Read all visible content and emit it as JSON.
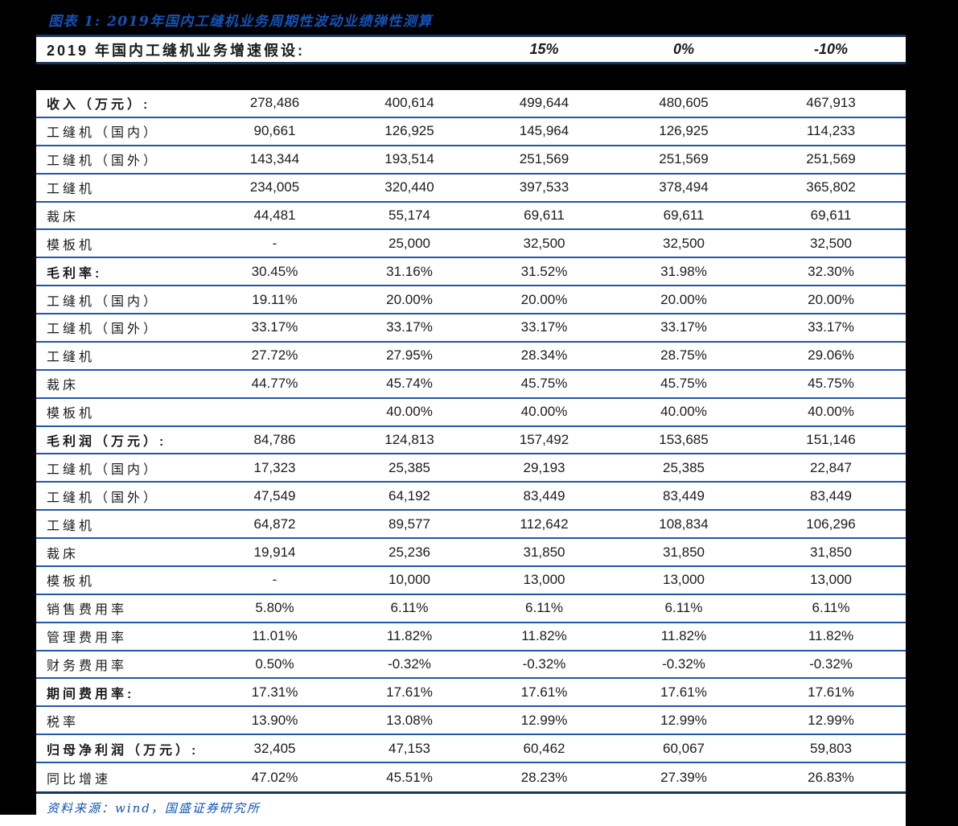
{
  "figure": {
    "caption": "图表 1: 2019年国内工缝机业务周期性波动业绩弹性测算",
    "source": "资料来源：wind，国盛证券研究所"
  },
  "header": {
    "label": "2019 年国内工缝机业务增速假设:",
    "scenarios": [
      "15%",
      "0%",
      "-10%"
    ]
  },
  "table": {
    "rows": [
      {
        "label": "收入（万元）:",
        "bold": true,
        "values": [
          "278,486",
          "400,614",
          "499,644",
          "480,605",
          "467,913"
        ]
      },
      {
        "label": "工缝机（国内）",
        "bold": false,
        "values": [
          "90,661",
          "126,925",
          "145,964",
          "126,925",
          "114,233"
        ]
      },
      {
        "label": "工缝机（国外）",
        "bold": false,
        "values": [
          "143,344",
          "193,514",
          "251,569",
          "251,569",
          "251,569"
        ]
      },
      {
        "label": "工缝机",
        "bold": false,
        "values": [
          "234,005",
          "320,440",
          "397,533",
          "378,494",
          "365,802"
        ]
      },
      {
        "label": "裁床",
        "bold": false,
        "values": [
          "44,481",
          "55,174",
          "69,611",
          "69,611",
          "69,611"
        ]
      },
      {
        "label": "模板机",
        "bold": false,
        "values": [
          "-",
          "25,000",
          "32,500",
          "32,500",
          "32,500"
        ]
      },
      {
        "label": "毛利率:",
        "bold": true,
        "values": [
          "30.45%",
          "31.16%",
          "31.52%",
          "31.98%",
          "32.30%"
        ]
      },
      {
        "label": "工缝机（国内）",
        "bold": false,
        "values": [
          "19.11%",
          "20.00%",
          "20.00%",
          "20.00%",
          "20.00%"
        ]
      },
      {
        "label": "工缝机（国外）",
        "bold": false,
        "values": [
          "33.17%",
          "33.17%",
          "33.17%",
          "33.17%",
          "33.17%"
        ]
      },
      {
        "label": "工缝机",
        "bold": false,
        "values": [
          "27.72%",
          "27.95%",
          "28.34%",
          "28.75%",
          "29.06%"
        ]
      },
      {
        "label": "裁床",
        "bold": false,
        "values": [
          "44.77%",
          "45.74%",
          "45.75%",
          "45.75%",
          "45.75%"
        ]
      },
      {
        "label": "模板机",
        "bold": false,
        "values": [
          "",
          "40.00%",
          "40.00%",
          "40.00%",
          "40.00%"
        ]
      },
      {
        "label": "毛利润（万元）:",
        "bold": true,
        "values": [
          "84,786",
          "124,813",
          "157,492",
          "153,685",
          "151,146"
        ]
      },
      {
        "label": "工缝机（国内）",
        "bold": false,
        "values": [
          "17,323",
          "25,385",
          "29,193",
          "25,385",
          "22,847"
        ]
      },
      {
        "label": "工缝机（国外）",
        "bold": false,
        "values": [
          "47,549",
          "64,192",
          "83,449",
          "83,449",
          "83,449"
        ]
      },
      {
        "label": "工缝机",
        "bold": false,
        "values": [
          "64,872",
          "89,577",
          "112,642",
          "108,834",
          "106,296"
        ]
      },
      {
        "label": "裁床",
        "bold": false,
        "values": [
          "19,914",
          "25,236",
          "31,850",
          "31,850",
          "31,850"
        ]
      },
      {
        "label": "模板机",
        "bold": false,
        "values": [
          "-",
          "10,000",
          "13,000",
          "13,000",
          "13,000"
        ]
      },
      {
        "label": "销售费用率",
        "bold": false,
        "values": [
          "5.80%",
          "6.11%",
          "6.11%",
          "6.11%",
          "6.11%"
        ]
      },
      {
        "label": "管理费用率",
        "bold": false,
        "values": [
          "11.01%",
          "11.82%",
          "11.82%",
          "11.82%",
          "11.82%"
        ]
      },
      {
        "label": "财务费用率",
        "bold": false,
        "values": [
          "0.50%",
          "-0.32%",
          "-0.32%",
          "-0.32%",
          "-0.32%"
        ]
      },
      {
        "label": "期间费用率:",
        "bold": true,
        "values": [
          "17.31%",
          "17.61%",
          "17.61%",
          "17.61%",
          "17.61%"
        ]
      },
      {
        "label": "税率",
        "bold": false,
        "values": [
          "13.90%",
          "13.08%",
          "12.99%",
          "12.99%",
          "12.99%"
        ]
      },
      {
        "label": "归母净利润（万元）:",
        "bold": true,
        "values": [
          "32,405",
          "47,153",
          "60,462",
          "60,067",
          "59,803"
        ]
      },
      {
        "label": "同比增速",
        "bold": false,
        "values": [
          "47.02%",
          "45.51%",
          "28.23%",
          "27.39%",
          "26.83%"
        ]
      }
    ]
  },
  "colors": {
    "accent-blue": "#1452b8",
    "line-blue": "#2257a5",
    "navy": "#17365d",
    "ink": "#1b1b1b"
  }
}
